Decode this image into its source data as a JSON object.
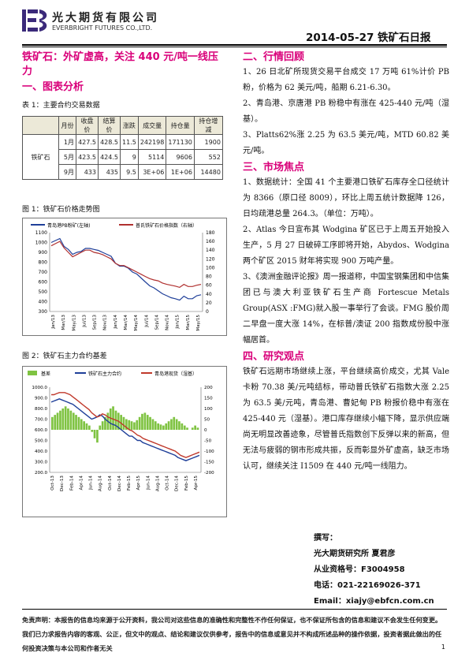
{
  "header": {
    "company_cn": "光大期货有限公司",
    "company_en": "EVERBRIGHT FUTURES CO.,LTD.",
    "report_date_title": "2014-05-27  铁矿石日报"
  },
  "left": {
    "headline": "铁矿石：外矿虚高，关注 440 元/吨一线压力",
    "section1": "一、图表分析",
    "table_caption": "表 1：主要合约交易数据",
    "table": {
      "headers": [
        "",
        "月份",
        "收盘价",
        "结算价",
        "涨跌",
        "成交量",
        "持仓量",
        "持仓增减"
      ],
      "commodity": "铁矿石",
      "rows": [
        [
          "1月",
          "427.5",
          "428.5",
          "11.5",
          "242198",
          "171130",
          "1900"
        ],
        [
          "5月",
          "423.5",
          "424.5",
          "9",
          "5114",
          "9606",
          "552"
        ],
        [
          "9月",
          "433",
          "435",
          "9.5",
          "3E+06",
          "1E+06",
          "14480"
        ]
      ]
    },
    "fig1_caption": "图 1：铁矿石价格走势图",
    "fig2_caption": "图 2：铁矿石主力合约基差"
  },
  "chart_data": [
    {
      "type": "line",
      "legend": [
        "青岛港PB粉矿(左轴)",
        "普氏铁矿石价格指数（右轴）"
      ],
      "y_left_ticks": [
        "1100",
        "1000",
        "900",
        "800",
        "700",
        "600",
        "500",
        "400",
        "300"
      ],
      "y_right_ticks": [
        "180",
        "160",
        "140",
        "120",
        "100",
        "80",
        "60",
        "40",
        "20",
        "0"
      ],
      "x_ticks": [
        "Jan/13",
        "Mar/13",
        "May/13",
        "Jul/13",
        "Sep/13",
        "Nov/13",
        "Jan/14",
        "Mar/14",
        "May/14",
        "Jul/14",
        "Sep/14",
        "Nov/14",
        "Jan/15",
        "Mar/15",
        "May/15"
      ],
      "series": [
        {
          "name": "青岛港PB粉矿(左轴)",
          "color": "#1f3f99",
          "values": [
            1000,
            1020,
            1040,
            960,
            930,
            880,
            900,
            910,
            940,
            940,
            930,
            920,
            900,
            880,
            860,
            790,
            760,
            760,
            740,
            700,
            680,
            640,
            600,
            560,
            540,
            510,
            480,
            460,
            440,
            430,
            415,
            455,
            430,
            430,
            460,
            470
          ]
        },
        {
          "name": "普氏铁矿石价格指数（右轴）",
          "color": "#b0302f",
          "values": [
            150,
            155,
            160,
            145,
            135,
            125,
            130,
            135,
            140,
            140,
            135,
            133,
            130,
            125,
            120,
            110,
            105,
            105,
            100,
            95,
            90,
            85,
            80,
            75,
            72,
            70,
            65,
            62,
            60,
            58,
            55,
            62,
            57,
            57,
            60,
            62
          ]
        }
      ]
    },
    {
      "type": "bar",
      "legend": [
        "基差",
        "铁矿石主力合约",
        "青岛港现货（湿基）"
      ],
      "y_left_ticks": [
        "1000.0",
        "900.0",
        "800.0",
        "700.0",
        "600.0",
        "500.0",
        "400.0",
        "300.0",
        "200.0"
      ],
      "y_right_ticks": [
        "200",
        "150",
        "100",
        "50",
        "0",
        "-50",
        "-100",
        "-150",
        "-200"
      ],
      "x_ticks": [
        "Oct-13",
        "Dec-13",
        "Feb-14",
        "Apr-14",
        "Jun-14",
        "Aug-14",
        "Oct-14",
        "Dec-14",
        "Feb-15",
        "Apr-15",
        "Jun-14",
        "Aug-14",
        "Oct-14",
        "Dec-14",
        "Feb-15",
        "Apr-15"
      ],
      "series": [
        {
          "name": "基差",
          "color": "#7fc342",
          "values": [
            60,
            70,
            80,
            90,
            100,
            110,
            100,
            90,
            80,
            70,
            60,
            50,
            40,
            30,
            20,
            -10,
            -40,
            -60,
            20,
            40,
            60,
            80,
            100,
            110,
            90,
            80,
            70,
            60,
            50,
            45,
            40,
            35,
            45,
            60,
            75,
            80,
            70,
            60,
            50,
            40,
            30,
            25,
            20,
            30,
            40,
            50,
            60,
            50,
            40,
            30,
            20,
            10,
            0,
            10,
            20,
            10
          ]
        },
        {
          "name": "铁矿石主力合约",
          "color": "#1f3f99",
          "values": [
            860,
            870,
            880,
            890,
            880,
            870,
            860,
            850,
            840,
            820,
            800,
            780,
            760,
            740,
            720,
            700,
            710,
            720,
            740,
            730,
            700,
            680,
            660,
            650,
            640,
            620,
            600,
            580,
            560,
            540,
            540,
            520,
            500,
            500,
            480,
            470,
            460,
            450,
            440,
            430,
            420,
            410,
            400,
            390,
            380,
            370,
            360,
            340,
            330,
            320,
            310,
            320,
            330,
            340,
            350,
            360
          ]
        },
        {
          "name": "青岛港现货（湿基）",
          "color": "#c0392b",
          "values": [
            930,
            930,
            940,
            950,
            950,
            950,
            940,
            930,
            910,
            890,
            870,
            850,
            830,
            810,
            790,
            760,
            740,
            720,
            730,
            750,
            740,
            720,
            710,
            700,
            690,
            680,
            660,
            640,
            620,
            600,
            590,
            570,
            550,
            540,
            520,
            510,
            500,
            490,
            480,
            470,
            460,
            450,
            440,
            430,
            420,
            410,
            400,
            380,
            360,
            350,
            340,
            350,
            360,
            370,
            380,
            390
          ]
        }
      ]
    }
  ],
  "right": {
    "section2": "二、行情回顾",
    "review": [
      "1、26 日北矿所现货交易平台成交 17 万吨 61%计价 PB 粉，价格为 62 美元/吨，船期 6.21-6.30。",
      "2、青岛港、京唐港 PB 粉稳中有涨在 425-440 元/吨（湿基）。",
      "3、Platts62%涨 2.25 为 63.5 美元/吨，MTD 60.82 美元/吨。"
    ],
    "section3": "三、市场焦点",
    "focus": [
      "1、数据统计：全国 41 个主要港口铁矿石库存全口径统计为 8366（原口径 8009），环比上周五统计数据降 126，日均疏港总量 264.3。（单位：万吨）。",
      "2、Atlas 今日宣布其 Wodgina 矿区已于上周五开始投入生产，5 月 27 日破碎工序即将开始，Abydos、Wodgina 两个矿区 2015 财年将实现 900 万吨产量。",
      "3、《澳洲金融评论报》周一报道称，中国宝钢集团和中信集团已与澳大利亚铁矿石生产商 Fortescue Metals Group(ASX :FMG)就入股一事举行了会谈。FMG 股价周二早盘一度大涨 14%，在标普/澳证 200 指数成份股中涨幅居首。"
    ],
    "section4": "四、研究观点",
    "opinion": "铁矿石远期市场继续上涨，平台继续高价成交，尤其 Vale 卡粉 70.38 美/元吨结标，带动普氏铁矿石指数大涨 2.25 为 63.5 美/元吨，青岛港、曹妃甸 PB 粉报价稳中有涨在 425-440 元（湿基）。港口库存继续小幅下降，显示供应端尚无明显改善迹象，尽管普氏指数创下反弹以来的新高，但无法与疲弱的钢市形成共振，反而彰显外矿虚高，缺乏市场认可，继续关注 I1509 在 440 元/吨一线阻力。"
  },
  "author": {
    "label": "撰写：",
    "name": "光大期货研究所 夏君彦",
    "license": "从业资格号：F3004958",
    "phone": "电话：021-22169026-371",
    "email": "Email：xiajy@ebfcn.com.cn"
  },
  "disclaimer": "免责声明：本报告的信息均来源于公开资料，我公司对这些信息的准确性和完整性不作任何保证，也不保证所包含的信息和建议不会发生任何变更。我们已力求报告内容的客观、公正，但文中的观点、结论和建议仅供参考，报告中的信息或意见并不构成所述品种的操作依据，投资者据此做出的任何投资决策与本公司和作者无关",
  "page_number": "1"
}
